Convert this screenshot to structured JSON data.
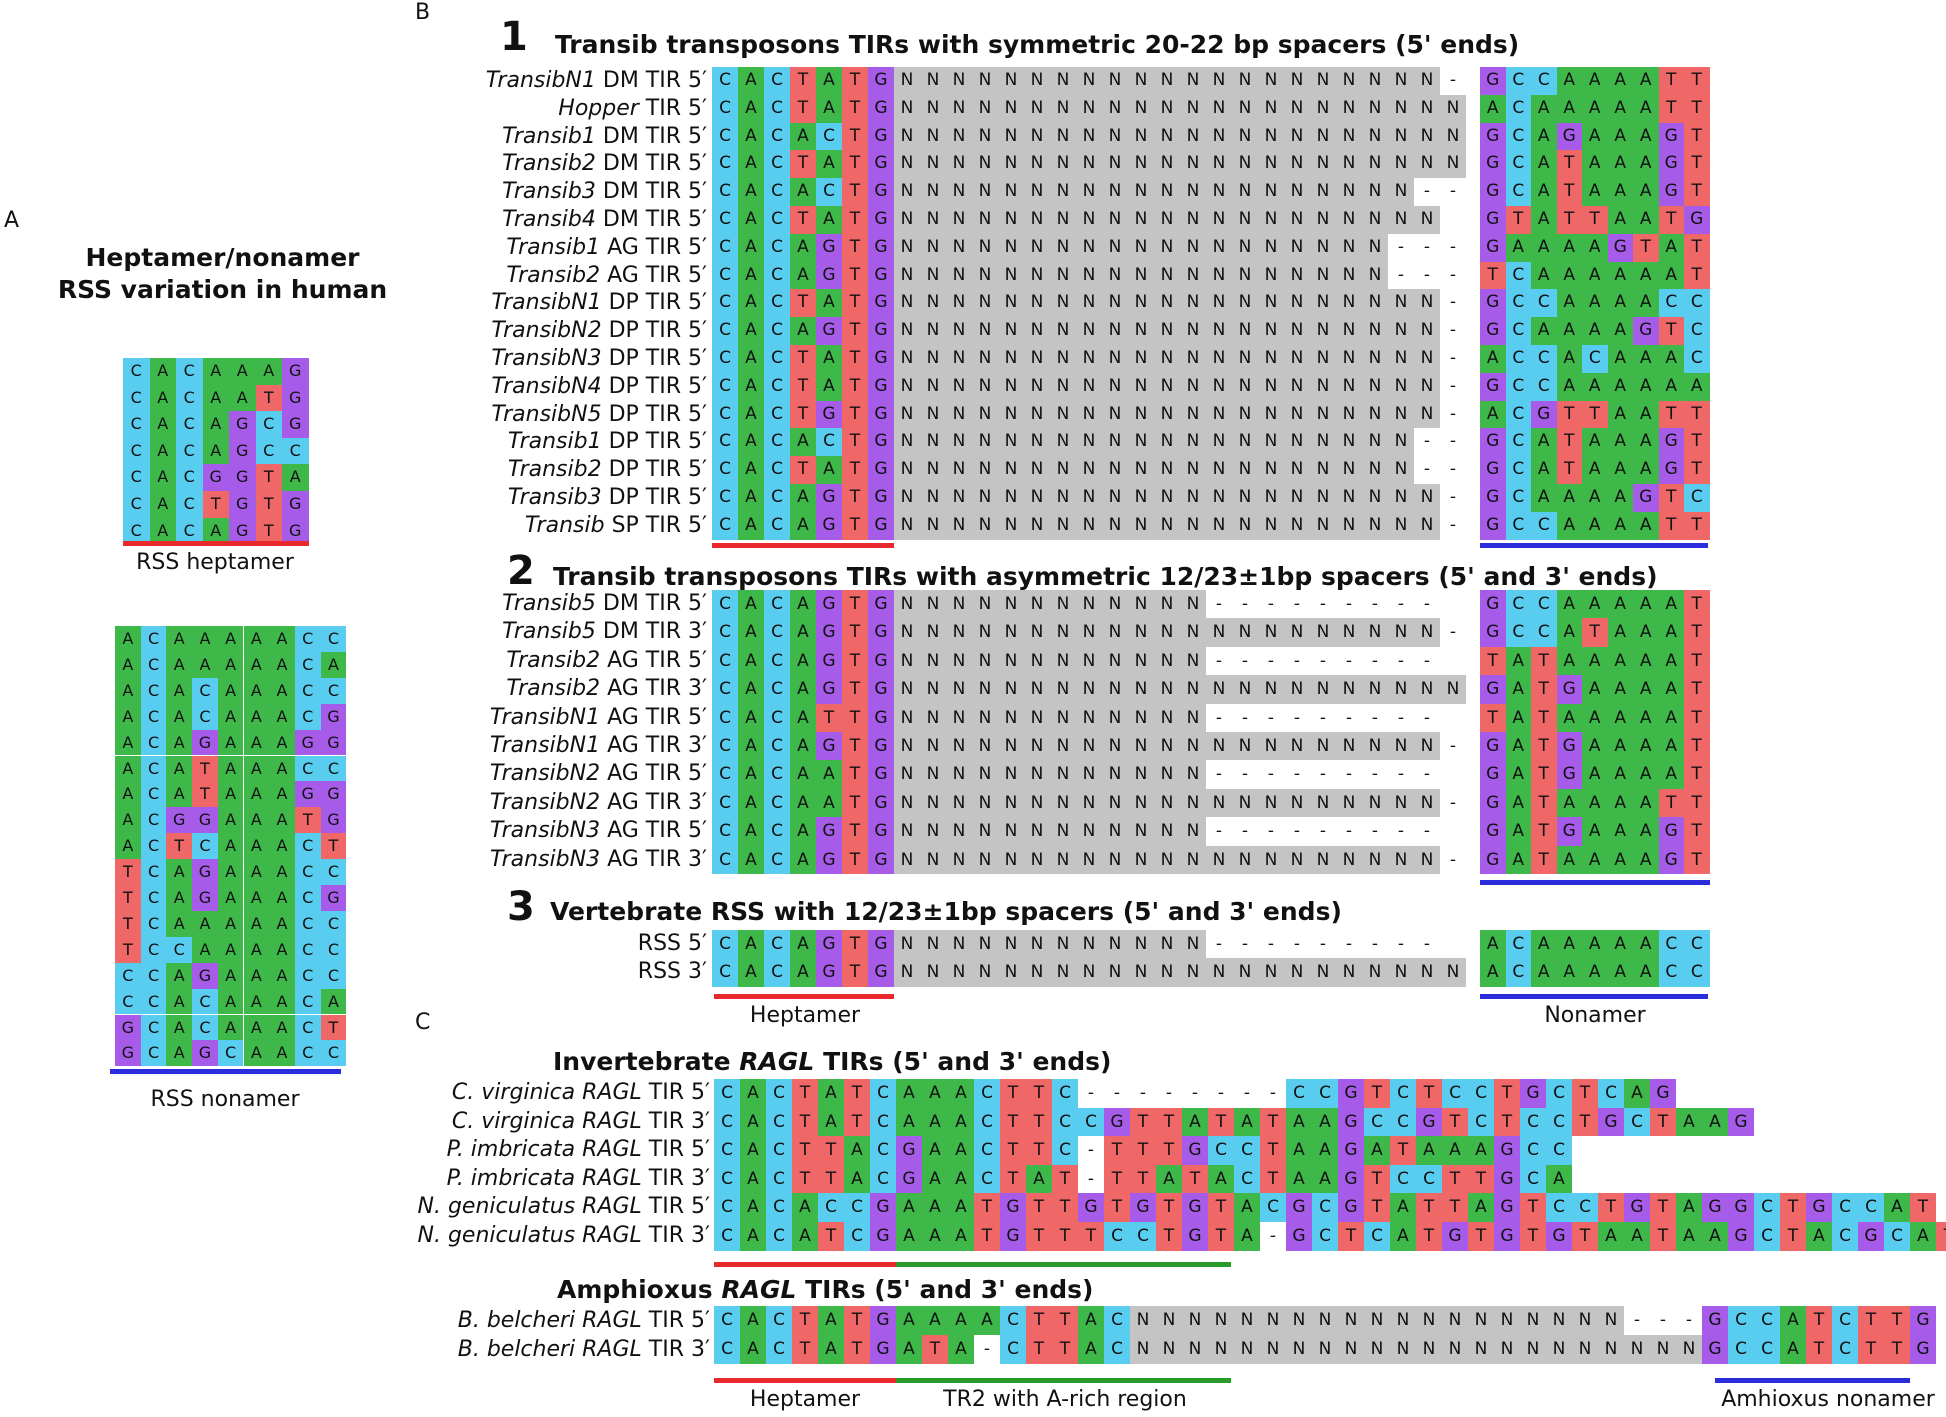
{
  "colors": {
    "A": "#3fb84a",
    "C": "#58cdf0",
    "G": "#a65ce8",
    "T": "#ef6767",
    "N": "#c4c4c4",
    "-": "#ffffff",
    "red": "#e8282c",
    "blue": "#2b2ddc",
    "green": "#2a9a2a"
  },
  "panelA": {
    "label": "A",
    "title1": "Heptamer/nonamer",
    "title2": "RSS variation in human",
    "heptamer_caption": "RSS heptamer",
    "nonamer_caption": "RSS nonamer",
    "heptamers": [
      "CACAAAG",
      "CACAATG",
      "CACAGCG",
      "CACAGCC",
      "CACGGTA",
      "CACTGTG",
      "CACAGTG"
    ],
    "nonamers": [
      "ACAAAAACC",
      "ACAAAAACA",
      "ACACAAACC",
      "ACACAAACG",
      "ACAGAAAGG",
      "ACATAAACC",
      "ACATAAAGG",
      "ACGGAAATG",
      "ACTCAAACT",
      "TCAGAAACC",
      "TCAGAAACG",
      "TCAAAAACC",
      "TCCAAAACC",
      "CCAGAAACC",
      "CCACAAACA",
      "GCACAAACT",
      "GCAGCAACC"
    ]
  },
  "panelB": {
    "label": "B",
    "s1": {
      "num": "1",
      "title": "Transib transposons TIRs with symmetric 20-22 bp spacers (5' ends)",
      "rows": [
        {
          "it": "TransibN1",
          "rest": " DM TIR 5′",
          "hep": "CACTATG",
          "sp": "NNNNNNNNNNNNNNNNNNNNN-",
          "non": "GCCAAAATT"
        },
        {
          "it": "Hopper",
          "rest": " TIR 5′",
          "hep": "CACTATG",
          "sp": "NNNNNNNNNNNNNNNNNNNNNN",
          "non": "ACAAAAATT"
        },
        {
          "it": "Transib1",
          "rest": " DM TIR 5′",
          "hep": "CACACTG",
          "sp": "NNNNNNNNNNNNNNNNNNNNNN",
          "non": "GCAGAAAGT"
        },
        {
          "it": "Transib2",
          "rest": " DM TIR 5′",
          "hep": "CACTATG",
          "sp": "NNNNNNNNNNNNNNNNNNNNNN",
          "non": "GCATAAAGT"
        },
        {
          "it": "Transib3",
          "rest": " DM TIR 5′",
          "hep": "CACACTG",
          "sp": "NNNNNNNNNNNNNNNNNNNN--",
          "non": "GCATAAAGT"
        },
        {
          "it": "Transib4",
          "rest": " DM TIR 5′",
          "hep": "CACTATG",
          "sp": "NNNNNNNNNNNNNNNNNNNNN ",
          "non": "GTATTAATG"
        },
        {
          "it": "Transib1",
          "rest": " AG TIR 5′",
          "hep": "CACAGTG",
          "sp": "NNNNNNNNNNNNNNNNNNN---",
          "non": "GAAAAGTAT"
        },
        {
          "it": "Transib2",
          "rest": " AG TIR 5′",
          "hep": "CACAGTG",
          "sp": "NNNNNNNNNNNNNNNNNNN---",
          "non": "TCAAAAAAT"
        },
        {
          "it": "TransibN1",
          "rest": " DP TIR 5′",
          "hep": "CACTATG",
          "sp": "NNNNNNNNNNNNNNNNNNNNN-",
          "non": "GCCAAAACC"
        },
        {
          "it": "TransibN2",
          "rest": " DP TIR 5′",
          "hep": "CACAGTG",
          "sp": "NNNNNNNNNNNNNNNNNNNNN-",
          "non": "GCAAAAGTC"
        },
        {
          "it": "TransibN3",
          "rest": " DP TIR 5′",
          "hep": "CACTATG",
          "sp": "NNNNNNNNNNNNNNNNNNNNN-",
          "non": "ACCACAAAC"
        },
        {
          "it": "TransibN4",
          "rest": " DP TIR 5′",
          "hep": "CACTATG",
          "sp": "NNNNNNNNNNNNNNNNNNNNN-",
          "non": "GCCAAAAAA"
        },
        {
          "it": "TransibN5",
          "rest": " DP TIR 5′",
          "hep": "CACTGTG",
          "sp": "NNNNNNNNNNNNNNNNNNNNN-",
          "non": "ACGTTAATT"
        },
        {
          "it": "Transib1",
          "rest": " DP TIR 5′",
          "hep": "CACACTG",
          "sp": "NNNNNNNNNNNNNNNNNNNN--",
          "non": "GCATAAAGT"
        },
        {
          "it": "Transib2",
          "rest": " DP TIR 5′",
          "hep": "CACTATG",
          "sp": "NNNNNNNNNNNNNNNNNNNN--",
          "non": "GCATAAAGT"
        },
        {
          "it": "Transib3",
          "rest": " DP TIR 5′",
          "hep": "CACAGTG",
          "sp": "NNNNNNNNNNNNNNNNNNNNN-",
          "non": "GCAAAAGTC"
        },
        {
          "it": "Transib",
          "rest": " SP TIR 5′",
          "hep": "CACAGTG",
          "sp": "NNNNNNNNNNNNNNNNNNNNN-",
          "non": "GCCAAAATT"
        }
      ]
    },
    "s2": {
      "num": "2",
      "title": "Transib transposons TIRs with asymmetric 12/23±1bp spacers (5' and 3' ends)",
      "rows": [
        {
          "it": "Transib5",
          "rest": " DM TIR 5′",
          "hep": "CACAGTG",
          "sp": "NNNNNNNNNNNN---------",
          "non": "GCCAAAAAT"
        },
        {
          "it": "Transib5",
          "rest": " DM TIR 3′",
          "hep": "CACAGTG",
          "sp": "NNNNNNNNNNNNNNNNNNNNN-",
          "non": "GCCATAAAT"
        },
        {
          "it": "Transib2",
          "rest": " AG TIR 5′",
          "hep": "CACAGTG",
          "sp": "NNNNNNNNNNNN---------",
          "non": "TATAAAAAT"
        },
        {
          "it": "Transib2",
          "rest": " AG TIR 3′",
          "hep": "CACAGTG",
          "sp": "NNNNNNNNNNNNNNNNNNNNNN",
          "non": "GATGAAAAT"
        },
        {
          "it": "TransibN1",
          "rest": " AG TIR 5′",
          "hep": "CACATTG",
          "sp": "NNNNNNNNNNNN---------",
          "non": "TATAAAAAT"
        },
        {
          "it": "TransibN1",
          "rest": " AG TIR 3′",
          "hep": "CACAGTG",
          "sp": "NNNNNNNNNNNNNNNNNNNNN-",
          "non": "GATGAAAAT"
        },
        {
          "it": "TransibN2",
          "rest": " AG TIR 5′",
          "hep": "CACAATG",
          "sp": "NNNNNNNNNNNN---------",
          "non": "GATGAAAAT"
        },
        {
          "it": "TransibN2",
          "rest": " AG TIR 3′",
          "hep": "CACAATG",
          "sp": "NNNNNNNNNNNNNNNNNNNNN-",
          "non": "GATAAAATT"
        },
        {
          "it": "TransibN3",
          "rest": " AG TIR 5′",
          "hep": "CACAGTG",
          "sp": "NNNNNNNNNNNN---------",
          "non": "GATGAAAGT"
        },
        {
          "it": "TransibN3",
          "rest": " AG TIR 3′",
          "hep": "CACAGTG",
          "sp": "NNNNNNNNNNNNNNNNNNNNN-",
          "non": "GATAAAAGT"
        }
      ]
    },
    "s3": {
      "num": "3",
      "title": "Vertebrate RSS with 12/23±1bp spacers (5' and 3' ends)",
      "rows": [
        {
          "it": "",
          "rest": "RSS 5′",
          "hep": "CACAGTG",
          "sp": "NNNNNNNNNNNN---------",
          "non": "ACAAAAACC"
        },
        {
          "it": "",
          "rest": "RSS 3′",
          "hep": "CACAGTG",
          "sp": "NNNNNNNNNNNNNNNNNNNNNN",
          "non": "ACAAAAACC"
        }
      ]
    },
    "heptamer_caption": "Heptamer",
    "nonamer_caption": "Nonamer"
  },
  "panelC": {
    "label": "C",
    "inv_title_pre": "Invertebrate ",
    "inv_title_it": "RAGL",
    "inv_title_post": " TIRs (5' and 3' ends)",
    "inv_rows": [
      {
        "it1": "C. virginica",
        "it2": "RAGL",
        "rest": " TIR 5′",
        "seq": "CACTATCAAACTTC--------CCGTCTCCTGCTCAG"
      },
      {
        "it1": "C. virginica",
        "it2": "RAGL",
        "rest": " TIR 3′",
        "seq": "CACTATCAAACTTCCGTTATATAAGCCGTCTCCTGCTAAG"
      },
      {
        "it1": "P. imbricata",
        "it2": "RAGL",
        "rest": " TIR 5′",
        "seq": "CACTTACGAACTTC-TTTGCCTAAGATAAAGCC"
      },
      {
        "it1": "P. imbricata",
        "it2": "RAGL",
        "rest": " TIR 3′",
        "seq": "CACTTACGAACTAT-TTATACTAAGTCCTTGCA"
      },
      {
        "it1": "N. geniculatus",
        "it2": "RAGL",
        "rest": " TIR 5′",
        "seq": "CACACCGAAATGTTGTGTGTACGCGTATTAGTCCTGTAGGCTGCCAT"
      },
      {
        "it1": "N. geniculatus",
        "it2": "RAGL",
        "rest": " TIR 3′",
        "seq": "CACATCGAAATGTTTCCTGTA-GCTCATGTGTGTAATAAGCTACGCAT"
      }
    ],
    "amph_title_pre": "Amphioxus ",
    "amph_title_it": "RAGL",
    "amph_title_post": " TIRs (5' and 3' ends)",
    "amph_rows": [
      {
        "it1": "B. belcheri",
        "it2": "RAGL",
        "rest": " TIR 5′",
        "seq": "CACTATGAAAACTTACNNNNNNNNNNNNNNNNNNN---GCCATCTTG"
      },
      {
        "it1": "B. belcheri",
        "it2": "RAGL",
        "rest": " TIR 3′",
        "seq": "CACTATGATA-CTTACNNNNNNNNNNNNNNNNNNNNNNGCCATCTTG"
      }
    ],
    "heptamer_caption": "Heptamer",
    "tr2_caption": "TR2 with A-rich region",
    "nonamer_caption": "Amhioxus nonamer"
  }
}
